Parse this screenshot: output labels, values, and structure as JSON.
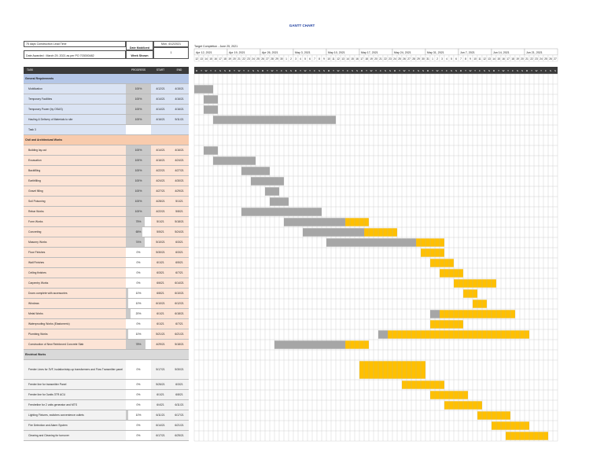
{
  "title": "GANTT CHART",
  "info": {
    "lead_time": "75 days Construction Lead Time",
    "date_mobilized_label": "Date Mobilized",
    "date_mobilized": "Mon, 4/12/2021",
    "date_awarded": "Date Awarded : March 29, 2021 as per PO 703000482",
    "week_shown_label": "Week Shown",
    "week_shown": "1",
    "target": "Target Completion - June 25, 2021"
  },
  "columns": {
    "task": "TASK",
    "progress": "PROGRESS",
    "start": "START",
    "end": "END"
  },
  "weeks": [
    "Apr 12, 2021",
    "Apr 19, 2021",
    "Apr 26, 2021",
    "May 3, 2021",
    "May 10, 2021",
    "May 17, 2021",
    "May 24, 2021",
    "May 31, 2021",
    "Jun 7, 2021",
    "Jun 14, 2021",
    "Jun 21, 2021"
  ],
  "day_numbers": [
    "12",
    "13",
    "14",
    "15",
    "16",
    "17",
    "18",
    "19",
    "20",
    "21",
    "22",
    "23",
    "24",
    "25",
    "26",
    "27",
    "28",
    "29",
    "30",
    "1",
    "2",
    "3",
    "4",
    "5",
    "6",
    "7",
    "8",
    "9",
    "10",
    "11",
    "12",
    "13",
    "14",
    "15",
    "16",
    "17",
    "18",
    "19",
    "20",
    "21",
    "22",
    "23",
    "24",
    "25",
    "26",
    "27",
    "28",
    "29",
    "30",
    "31",
    "1",
    "2",
    "3",
    "4",
    "5",
    "6",
    "7",
    "8",
    "9",
    "10",
    "11",
    "12",
    "13",
    "14",
    "15",
    "16",
    "17",
    "18",
    "19",
    "20",
    "21",
    "22",
    "23",
    "24",
    "25",
    "26",
    "27"
  ],
  "day_letters": [
    "M",
    "T",
    "W",
    "T",
    "F",
    "S",
    "S",
    "M",
    "T",
    "W",
    "T",
    "F",
    "S",
    "S",
    "M",
    "T",
    "W",
    "T",
    "F",
    "S",
    "S",
    "M",
    "T",
    "W",
    "T",
    "F",
    "S",
    "S",
    "M",
    "T",
    "W",
    "T",
    "F",
    "S",
    "S",
    "M",
    "T",
    "W",
    "T",
    "F",
    "S",
    "S",
    "M",
    "T",
    "W",
    "T",
    "F",
    "S",
    "S",
    "M",
    "T",
    "W",
    "T",
    "F",
    "S",
    "S",
    "M",
    "T",
    "W",
    "T",
    "F",
    "S",
    "S",
    "M",
    "T",
    "W",
    "T",
    "F",
    "S",
    "S",
    "M",
    "T",
    "W",
    "T",
    "F",
    "S",
    "S"
  ],
  "colors": {
    "gray_bar": "#a6a6a6",
    "yellow_bar": "#ffc000",
    "sec_blue": "#b4c6e7",
    "row_blue": "#dae3f3",
    "sec_orange": "#f8cbad",
    "row_orange": "#fce4d6",
    "sec_gray": "#d9d9d9",
    "row_gray": "#f2f2f2",
    "header": "#3a3a3a"
  },
  "rows": [
    {
      "type": "section",
      "theme": "blue",
      "task": "General Requirements",
      "h": 13
    },
    {
      "type": "task",
      "theme": "blue",
      "task": "Mobilization",
      "progress": "100%",
      "p": 1.0,
      "start": "4/12/21",
      "end": "4/15/21",
      "start_day": 0,
      "dur": 4,
      "done": 4,
      "h": 13
    },
    {
      "type": "task",
      "theme": "blue",
      "task": "Temporary Facilities",
      "progress": "100%",
      "p": 1.0,
      "start": "4/14/21",
      "end": "4/16/21",
      "start_day": 2,
      "dur": 3,
      "done": 3,
      "h": 13
    },
    {
      "type": "task",
      "theme": "blue",
      "task": "Temporary Power (by OSAS)",
      "progress": "100%",
      "p": 1.0,
      "start": "4/14/21",
      "end": "4/16/21",
      "start_day": 2,
      "dur": 3,
      "done": 3,
      "h": 13
    },
    {
      "type": "task",
      "theme": "blue",
      "task": "Hauling & Delivery of Materials to site",
      "progress": "100%",
      "p": 1.0,
      "start": "4/16/21",
      "end": "5/11/21",
      "start_day": 4,
      "dur": 26,
      "done": 26,
      "h": 13
    },
    {
      "type": "task",
      "theme": "blue",
      "task": "Task 3",
      "progress": "",
      "p": 0,
      "start": "",
      "end": "",
      "start_day": -1,
      "dur": 0,
      "done": 0,
      "h": 13
    },
    {
      "type": "section",
      "theme": "orange",
      "task": "Civil and Architectural Works",
      "h": 13
    },
    {
      "type": "task",
      "theme": "orange",
      "task": "Building lay-out",
      "progress": "100%",
      "p": 1.0,
      "start": "4/14/21",
      "end": "4/16/21",
      "start_day": 2,
      "dur": 3,
      "done": 3,
      "h": 13
    },
    {
      "type": "task",
      "theme": "orange",
      "task": "Excavation",
      "progress": "100%",
      "p": 1.0,
      "start": "4/16/21",
      "end": "4/24/21",
      "start_day": 4,
      "dur": 9,
      "done": 9,
      "h": 13
    },
    {
      "type": "task",
      "theme": "orange",
      "task": "Backfilling",
      "progress": "100%",
      "p": 1.0,
      "start": "4/22/21",
      "end": "4/27/21",
      "start_day": 10,
      "dur": 6,
      "done": 6,
      "h": 13
    },
    {
      "type": "task",
      "theme": "orange",
      "task": "Earthfilling",
      "progress": "100%",
      "p": 1.0,
      "start": "4/24/21",
      "end": "4/30/21",
      "start_day": 12,
      "dur": 7,
      "done": 7,
      "h": 13
    },
    {
      "type": "task",
      "theme": "orange",
      "task": "Gravel filling",
      "progress": "100%",
      "p": 1.0,
      "start": "4/27/21",
      "end": "4/29/21",
      "start_day": 15,
      "dur": 3,
      "done": 3,
      "h": 13
    },
    {
      "type": "task",
      "theme": "orange",
      "task": "Soil Poisoning",
      "progress": "100%",
      "p": 1.0,
      "start": "4/28/21",
      "end": "5/1/21",
      "start_day": 16,
      "dur": 4,
      "done": 4,
      "h": 13
    },
    {
      "type": "task",
      "theme": "orange",
      "task": "Rebar Works",
      "progress": "100%",
      "p": 1.0,
      "start": "4/22/21",
      "end": "5/8/21",
      "start_day": 10,
      "dur": 17,
      "done": 17,
      "h": 13
    },
    {
      "type": "task",
      "theme": "orange",
      "task": "Form Works",
      "progress": "75%",
      "p": 0.75,
      "start": "5/1/21",
      "end": "5/18/21",
      "start_day": 19,
      "dur": 18,
      "done": 13,
      "h": 13
    },
    {
      "type": "task",
      "theme": "orange",
      "task": "Concreting",
      "progress": "65%",
      "p": 0.65,
      "start": "5/5/21",
      "end": "5/24/21",
      "start_day": 23,
      "dur": 20,
      "done": 13,
      "h": 13
    },
    {
      "type": "task",
      "theme": "orange",
      "task": "Masonry Works",
      "progress": "74%",
      "p": 0.74,
      "start": "5/10/21",
      "end": "6/3/21",
      "start_day": 28,
      "dur": 25,
      "done": 19,
      "h": 13
    },
    {
      "type": "task",
      "theme": "orange",
      "task": "Floor Finishes",
      "progress": "0%",
      "p": 0,
      "start": "5/30/21",
      "end": "6/3/21",
      "start_day": 48,
      "dur": 5,
      "done": 0,
      "h": 13
    },
    {
      "type": "task",
      "theme": "orange",
      "task": "Wall Finishes",
      "progress": "0%",
      "p": 0,
      "start": "6/1/21",
      "end": "6/5/21",
      "start_day": 50,
      "dur": 5,
      "done": 0,
      "h": 13
    },
    {
      "type": "task",
      "theme": "orange",
      "task": "Ceiling finishes",
      "progress": "0%",
      "p": 0,
      "start": "6/3/21",
      "end": "6/7/21",
      "start_day": 52,
      "dur": 5,
      "done": 0,
      "h": 13
    },
    {
      "type": "task",
      "theme": "orange",
      "task": "Carpentry Works",
      "progress": "0%",
      "p": 0,
      "start": "6/6/21",
      "end": "6/14/21",
      "start_day": 55,
      "dur": 9,
      "done": 0,
      "h": 13
    },
    {
      "type": "task",
      "theme": "orange",
      "task": "Doors complete with accessories",
      "progress": "10%",
      "p": 0.1,
      "start": "6/8/21",
      "end": "6/10/21",
      "start_day": 57,
      "dur": 3,
      "done": 0,
      "h": 13
    },
    {
      "type": "task",
      "theme": "orange",
      "task": "Windows",
      "progress": "10%",
      "p": 0.1,
      "start": "6/10/21",
      "end": "6/12/21",
      "start_day": 59,
      "dur": 3,
      "done": 0,
      "h": 13
    },
    {
      "type": "task",
      "theme": "orange",
      "task": "Metal Works",
      "progress": "20%",
      "p": 0.2,
      "start": "6/1/21",
      "end": "6/18/21",
      "start_day": 50,
      "dur": 18,
      "done": 2,
      "h": 13
    },
    {
      "type": "task",
      "theme": "orange",
      "task": "Waterproofing Works (Elastomeric)",
      "progress": "0%",
      "p": 0,
      "start": "6/1/21",
      "end": "6/7/21",
      "start_day": 50,
      "dur": 7,
      "done": 0,
      "h": 13
    },
    {
      "type": "task",
      "theme": "orange",
      "task": "Plumbing Works",
      "progress": "10%",
      "p": 0.1,
      "start": "5/21/21",
      "end": "6/21/21",
      "start_day": 39,
      "dur": 32,
      "done": 2,
      "h": 13
    },
    {
      "type": "task",
      "theme": "orange",
      "task": "Construction of New Reinforced Concrete Slab",
      "progress": "78%",
      "p": 0.78,
      "start": "4/29/21",
      "end": "5/18/21",
      "start_day": 17,
      "dur": 20,
      "done": 15,
      "h": 13
    },
    {
      "type": "section",
      "theme": "gray",
      "task": "Electrical Works",
      "h": 13
    },
    {
      "type": "task",
      "theme": "gray",
      "task": "Feeder Lines for 3VF, Isolation/step-up transformers and Flow Transmitter panel",
      "progress": "0%",
      "p": 0,
      "start": "5/17/21",
      "end": "5/30/21",
      "start_day": 35,
      "dur": 14,
      "done": 0,
      "h": 25
    },
    {
      "type": "task",
      "theme": "gray",
      "task": "Feeder line for transmitter Panel",
      "progress": "0%",
      "p": 0,
      "start": "5/26/21",
      "end": "6/3/21",
      "start_day": 44,
      "dur": 9,
      "done": 0,
      "h": 13
    },
    {
      "type": "task",
      "theme": "gray",
      "task": "Feeder line for 3units 3TR ACU",
      "progress": "0%",
      "p": 0,
      "start": "6/1/21",
      "end": "6/8/21",
      "start_day": 50,
      "dur": 8,
      "done": 0,
      "h": 13
    },
    {
      "type": "task",
      "theme": "gray",
      "task": "Feedreline for 2 units generator and MTS",
      "progress": "0%",
      "p": 0,
      "start": "6/4/21",
      "end": "6/11/21",
      "start_day": 53,
      "dur": 8,
      "done": 0,
      "h": 13
    },
    {
      "type": "task",
      "theme": "gray",
      "task": "Lighting Fixtures, switches convenience outlets",
      "progress": "10%",
      "p": 0.1,
      "start": "6/11/21",
      "end": "6/17/21",
      "start_day": 60,
      "dur": 7,
      "done": 0,
      "h": 13
    },
    {
      "type": "task",
      "theme": "gray",
      "task": "Fire Detection and Alarm System",
      "progress": "0%",
      "p": 0,
      "start": "6/14/21",
      "end": "6/21/21",
      "start_day": 63,
      "dur": 8,
      "done": 0,
      "h": 13
    },
    {
      "type": "task",
      "theme": "gray",
      "task": "Clearing and Cleaning for turnover",
      "progress": "0%",
      "p": 0,
      "start": "6/17/21",
      "end": "6/25/21",
      "start_day": 66,
      "dur": 9,
      "done": 0,
      "h": 13
    }
  ]
}
